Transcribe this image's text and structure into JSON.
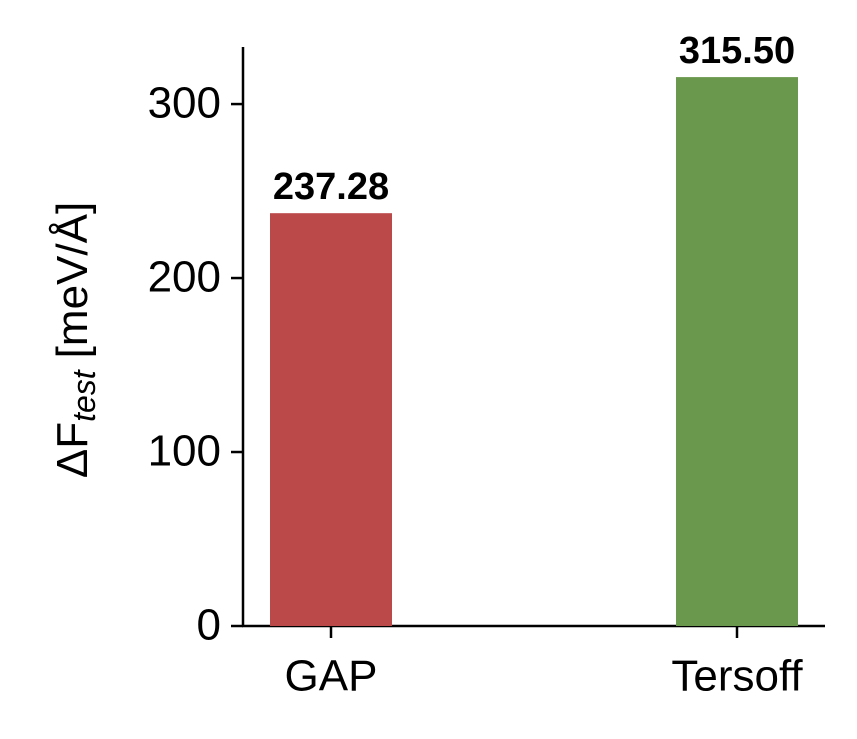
{
  "chart_data": {
    "type": "bar",
    "y_label": [
      "ΔF",
      "test",
      "[meV/Å]"
    ],
    "categories": [
      "GAP",
      "Tersoff"
    ],
    "series": [
      {
        "values": [
          237.28,
          315.5
        ],
        "value_labels": [
          "237.28",
          "315.50"
        ],
        "colors": [
          "#bc494a",
          "#6a994d"
        ]
      }
    ],
    "ylim": [
      0,
      332.8
    ],
    "yticks": [
      0,
      100,
      200,
      300
    ],
    "grid": false
  }
}
